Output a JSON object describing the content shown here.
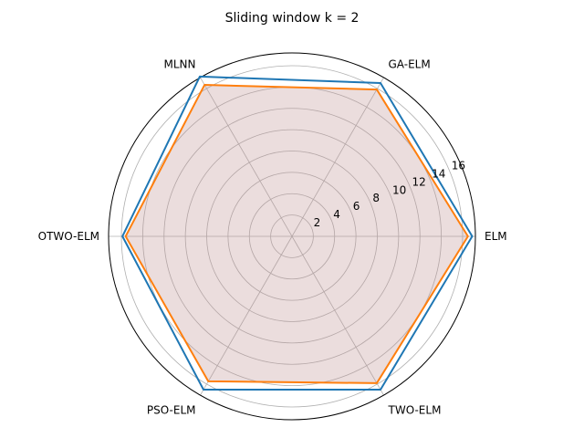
{
  "chart_data": {
    "type": "radar",
    "title": "Sliding window k = 2",
    "categories": [
      "ELM",
      "GA-ELM",
      "MLNN",
      "OTWO-ELM",
      "PSO-ELM",
      "TWO-ELM"
    ],
    "rlim": [
      0,
      17.2
    ],
    "rticks": [
      2,
      4,
      6,
      8,
      10,
      12,
      14,
      16
    ],
    "grid": true,
    "series": [
      {
        "values": [
          16.9,
          16.6,
          17.3,
          15.9,
          16.6,
          16.6
        ],
        "color": "#1f77b4",
        "fill": false
      },
      {
        "values": [
          16.5,
          15.9,
          16.4,
          15.6,
          15.7,
          15.9
        ],
        "color": "#ff7f0e",
        "fill": true,
        "fill_color": "#bc8f8f",
        "fill_opacity": 0.3
      }
    ]
  }
}
